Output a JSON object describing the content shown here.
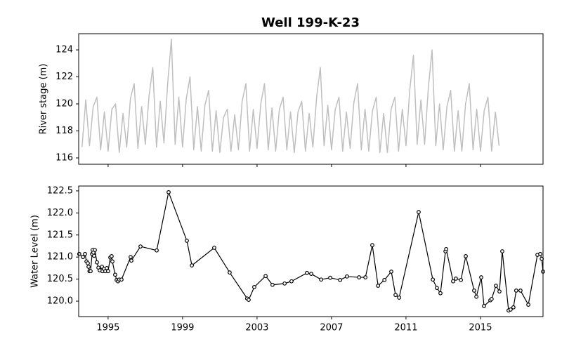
{
  "title": "Well 199-K-23",
  "chart_data": [
    {
      "type": "line",
      "y_label": "River stage (m)",
      "color": "#bfbfbf",
      "xlim": [
        1993.42,
        2018.36
      ],
      "xticks": [
        1995,
        1999,
        2003,
        2007,
        2011,
        2015
      ],
      "ylim": [
        115.53,
        125.2
      ],
      "yticks": [
        116,
        118,
        120,
        122,
        124
      ],
      "x": [
        1993.6,
        1993.8,
        1994,
        1994.2,
        1994.4,
        1994.6,
        1994.8,
        1995,
        1995.2,
        1995.4,
        1995.6,
        1995.8,
        1996,
        1996.2,
        1996.4,
        1996.6,
        1996.8,
        1997,
        1997.2,
        1997.4,
        1997.6,
        1997.8,
        1998,
        1998.2,
        1998.4,
        1998.6,
        1998.8,
        1999,
        1999.2,
        1999.4,
        1999.6,
        1999.8,
        2000,
        2000.2,
        2000.4,
        2000.6,
        2000.8,
        2001,
        2001.2,
        2001.4,
        2001.6,
        2001.8,
        2002,
        2002.2,
        2002.4,
        2002.6,
        2002.8,
        2003,
        2003.2,
        2003.4,
        2003.6,
        2003.8,
        2004,
        2004.2,
        2004.4,
        2004.6,
        2004.8,
        2005,
        2005.2,
        2005.4,
        2005.6,
        2005.8,
        2006,
        2006.2,
        2006.4,
        2006.6,
        2006.8,
        2007,
        2007.2,
        2007.4,
        2007.6,
        2007.8,
        2008,
        2008.2,
        2008.4,
        2008.6,
        2008.8,
        2009,
        2009.2,
        2009.4,
        2009.6,
        2009.8,
        2010,
        2010.2,
        2010.4,
        2010.6,
        2010.8,
        2011,
        2011.2,
        2011.4,
        2011.6,
        2011.8,
        2012,
        2012.2,
        2012.4,
        2012.6,
        2012.8,
        2013,
        2013.2,
        2013.4,
        2013.6,
        2013.8,
        2014,
        2014.2,
        2014.4,
        2014.6,
        2014.8,
        2015,
        2015.2,
        2015.4,
        2015.6,
        2015.8,
        2016
      ],
      "values": [
        116.8,
        120.3,
        116.9,
        119.8,
        120.5,
        116.6,
        119.4,
        116.5,
        119.6,
        120.0,
        116.4,
        119.3,
        116.8,
        120.4,
        121.5,
        116.7,
        119.8,
        117.0,
        120.6,
        122.7,
        116.8,
        120.2,
        117.1,
        121.5,
        124.8,
        117.0,
        120.5,
        116.8,
        120.4,
        122.0,
        116.6,
        119.8,
        116.5,
        119.9,
        121.0,
        116.5,
        119.5,
        116.4,
        119.0,
        119.6,
        116.5,
        119.2,
        116.6,
        120.2,
        121.5,
        116.5,
        119.6,
        116.7,
        120.0,
        121.5,
        116.6,
        119.7,
        116.5,
        119.6,
        120.5,
        116.6,
        119.4,
        116.4,
        119.4,
        120.2,
        116.5,
        119.3,
        116.8,
        120.5,
        122.7,
        116.9,
        119.9,
        116.6,
        119.6,
        120.5,
        116.5,
        119.4,
        116.7,
        120.1,
        121.5,
        116.6,
        119.6,
        116.5,
        119.5,
        120.5,
        116.4,
        119.3,
        116.4,
        119.6,
        120.5,
        116.5,
        119.6,
        116.9,
        121.0,
        123.6,
        117.0,
        120.3,
        117.0,
        121.2,
        124.0,
        116.9,
        120.0,
        116.6,
        119.8,
        121.0,
        116.5,
        119.5,
        116.5,
        120.0,
        121.5,
        116.6,
        119.6,
        116.5,
        119.5,
        120.5,
        116.5,
        119.4,
        116.9
      ]
    },
    {
      "type": "line",
      "y_label": "Water Level (m)",
      "color": "#000000",
      "markers": true,
      "xlim": [
        1993.42,
        2018.36
      ],
      "xticks": [
        1995,
        1999,
        2003,
        2007,
        2011,
        2015
      ],
      "ylim": [
        119.65,
        122.61
      ],
      "yticks": [
        {
          "value": 120,
          "label": "120.0"
        },
        120.5,
        {
          "value": 121,
          "label": "121.0"
        },
        121.5,
        {
          "value": 122,
          "label": "122.0"
        },
        122.5
      ],
      "x": [
        1993.45,
        1993.65,
        1993.76,
        1993.84,
        1993.91,
        1993.95,
        1994.0,
        1994.06,
        1994.14,
        1994.17,
        1994.21,
        1994.25,
        1994.29,
        1994.4,
        1994.48,
        1994.55,
        1994.67,
        1994.7,
        1994.78,
        1994.85,
        1994.93,
        1995.0,
        1995.12,
        1995.19,
        1995.23,
        1995.38,
        1995.46,
        1995.53,
        1995.6,
        1995.72,
        1996.21,
        1996.25,
        1996.74,
        1997.61,
        1998.25,
        1999.23,
        1999.5,
        2000.7,
        2001.53,
        2002.47,
        2002.55,
        2002.85,
        2003.46,
        2003.83,
        2004.48,
        2004.85,
        2005.68,
        2005.91,
        2006.44,
        2006.93,
        2007.46,
        2007.83,
        2008.48,
        2008.82,
        2009.19,
        2009.5,
        2009.84,
        2010.21,
        2010.44,
        2010.63,
        2011.68,
        2012.44,
        2012.66,
        2012.85,
        2013.12,
        2013.16,
        2013.53,
        2013.68,
        2013.95,
        2014.21,
        2014.66,
        2014.78,
        2015.04,
        2015.19,
        2015.53,
        2015.6,
        2015.83,
        2016.02,
        2016.17,
        2016.51,
        2016.62,
        2016.77,
        2016.92,
        2017.15,
        2017.57,
        2018.06,
        2018.21,
        2018.29,
        2018.36
      ],
      "values": [
        121.07,
        121.0,
        121.07,
        120.9,
        120.86,
        120.78,
        120.68,
        120.68,
        121.07,
        121.16,
        121.1,
        121.03,
        121.16,
        120.88,
        120.76,
        120.7,
        120.78,
        120.68,
        120.73,
        120.68,
        120.75,
        120.68,
        120.99,
        121.02,
        120.9,
        120.6,
        120.48,
        120.45,
        120.49,
        120.49,
        121.0,
        120.92,
        121.24,
        121.15,
        122.47,
        121.37,
        120.81,
        121.21,
        120.65,
        120.06,
        120.03,
        120.32,
        120.57,
        120.37,
        120.4,
        120.45,
        120.64,
        120.62,
        120.49,
        120.53,
        120.48,
        120.56,
        120.54,
        120.54,
        121.27,
        120.35,
        120.48,
        120.67,
        120.14,
        120.08,
        122.02,
        120.49,
        120.3,
        120.18,
        121.13,
        121.18,
        120.45,
        120.51,
        120.48,
        121.02,
        120.24,
        120.1,
        120.54,
        119.89,
        120.02,
        120.05,
        120.35,
        120.22,
        121.13,
        119.79,
        119.81,
        119.86,
        120.24,
        120.24,
        119.92,
        121.05,
        121.07,
        120.96,
        120.67
      ]
    }
  ]
}
